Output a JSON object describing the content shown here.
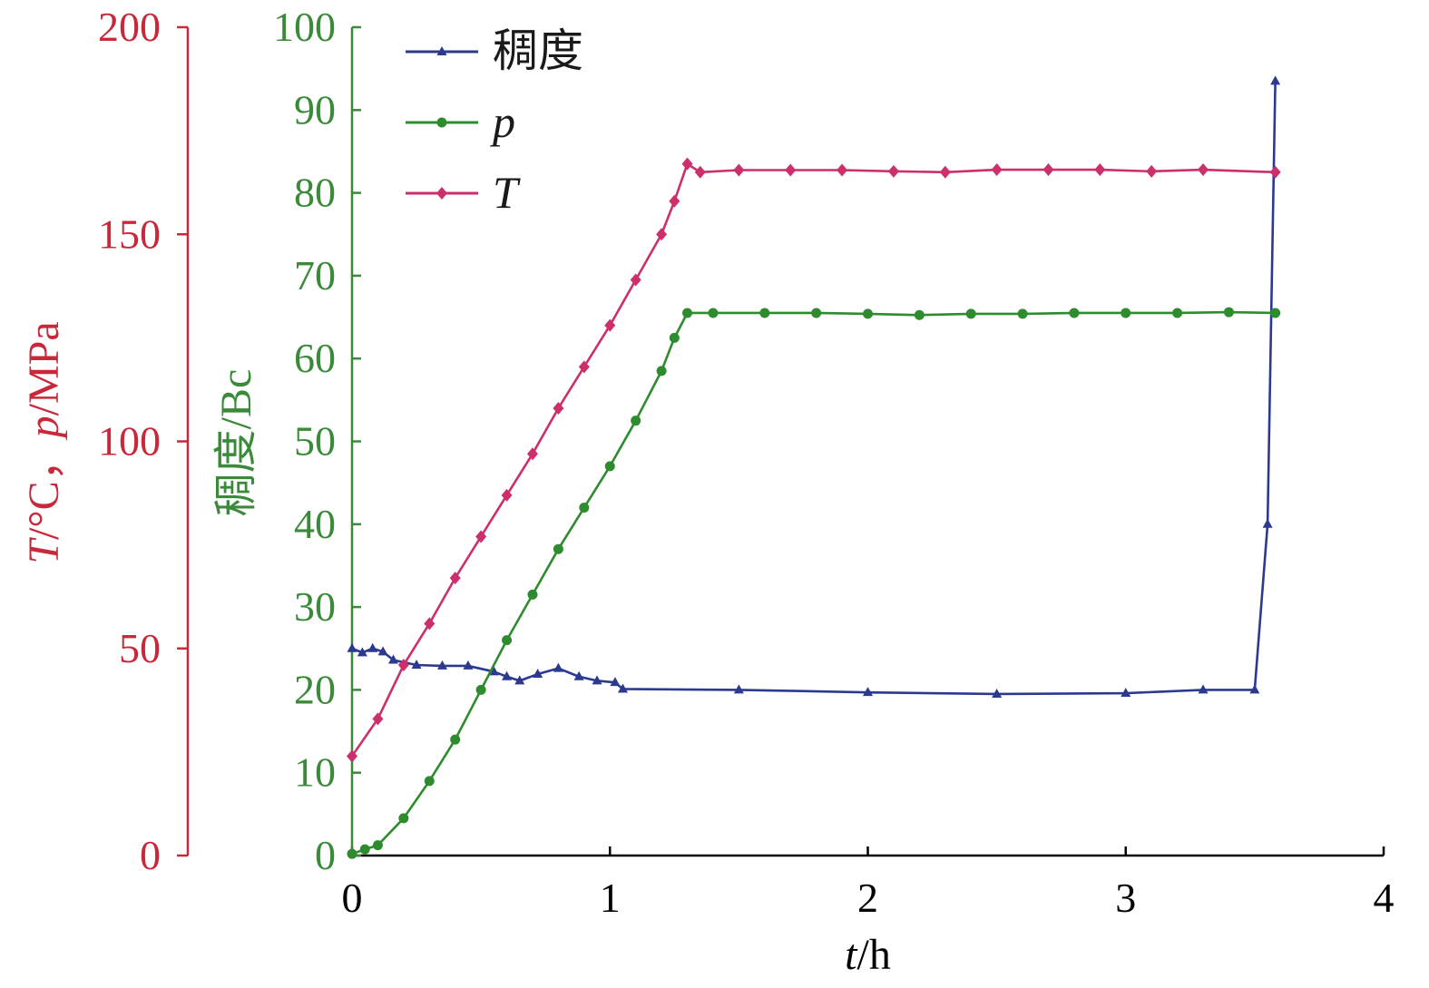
{
  "chart_data": {
    "type": "line",
    "x_axis": {
      "label_italic": "t",
      "label_rest": "/h",
      "range": [
        0,
        4
      ],
      "ticks": [
        0,
        1,
        2,
        3,
        4
      ],
      "color": "#000000"
    },
    "y_axis_outer": {
      "label_T": "T",
      "label_T_unit": "/°C，",
      "label_p": "p",
      "label_p_unit": "/MPa",
      "range": [
        0,
        200
      ],
      "ticks": [
        0,
        50,
        100,
        150,
        200
      ],
      "color": "#c8283a"
    },
    "y_axis_inner": {
      "label": "稠度/Bc",
      "range": [
        0,
        100
      ],
      "ticks": [
        0,
        10,
        20,
        30,
        40,
        50,
        60,
        70,
        80,
        90,
        100
      ],
      "color": "#3a8a3a"
    },
    "legend": {
      "position": "top-left"
    },
    "series": [
      {
        "name": "稠度",
        "italic": false,
        "color": "#2b3a8f",
        "marker": "triangle",
        "axis": "inner",
        "points": [
          [
            0,
            25
          ],
          [
            0.04,
            24.5
          ],
          [
            0.08,
            25
          ],
          [
            0.12,
            24.6
          ],
          [
            0.16,
            23.6
          ],
          [
            0.25,
            23
          ],
          [
            0.35,
            22.9
          ],
          [
            0.45,
            22.9
          ],
          [
            0.55,
            22.2
          ],
          [
            0.6,
            21.6
          ],
          [
            0.65,
            21.1
          ],
          [
            0.72,
            21.9
          ],
          [
            0.8,
            22.6
          ],
          [
            0.88,
            21.6
          ],
          [
            0.95,
            21.1
          ],
          [
            1.02,
            20.9
          ],
          [
            1.05,
            20.1
          ],
          [
            1.5,
            20
          ],
          [
            2.0,
            19.7
          ],
          [
            2.5,
            19.5
          ],
          [
            3.0,
            19.6
          ],
          [
            3.3,
            20
          ],
          [
            3.5,
            20
          ],
          [
            3.55,
            40
          ],
          [
            3.58,
            93.5
          ]
        ]
      },
      {
        "name": "p",
        "italic": true,
        "color": "#2e8b2e",
        "marker": "circle",
        "axis": "outer",
        "points": [
          [
            0,
            0.4
          ],
          [
            0.05,
            1.5
          ],
          [
            0.1,
            2.5
          ],
          [
            0.2,
            9
          ],
          [
            0.3,
            18
          ],
          [
            0.4,
            28
          ],
          [
            0.5,
            40
          ],
          [
            0.6,
            52
          ],
          [
            0.7,
            63
          ],
          [
            0.8,
            74
          ],
          [
            0.9,
            84
          ],
          [
            1.0,
            94
          ],
          [
            1.1,
            105
          ],
          [
            1.2,
            117
          ],
          [
            1.25,
            125
          ],
          [
            1.3,
            131
          ],
          [
            1.4,
            131
          ],
          [
            1.6,
            131
          ],
          [
            1.8,
            131
          ],
          [
            2.0,
            130.8
          ],
          [
            2.2,
            130.5
          ],
          [
            2.4,
            130.8
          ],
          [
            2.6,
            130.8
          ],
          [
            2.8,
            131
          ],
          [
            3.0,
            131
          ],
          [
            3.2,
            131
          ],
          [
            3.4,
            131.2
          ],
          [
            3.58,
            131
          ]
        ]
      },
      {
        "name": "T",
        "italic": true,
        "color": "#cc2f6b",
        "marker": "diamond",
        "axis": "outer",
        "points": [
          [
            0,
            24
          ],
          [
            0.1,
            33
          ],
          [
            0.2,
            46
          ],
          [
            0.3,
            56
          ],
          [
            0.4,
            67
          ],
          [
            0.5,
            77
          ],
          [
            0.6,
            87
          ],
          [
            0.7,
            97
          ],
          [
            0.8,
            108
          ],
          [
            0.9,
            118
          ],
          [
            1.0,
            128
          ],
          [
            1.1,
            139
          ],
          [
            1.2,
            150
          ],
          [
            1.25,
            158
          ],
          [
            1.3,
            167
          ],
          [
            1.35,
            165
          ],
          [
            1.5,
            165.5
          ],
          [
            1.7,
            165.5
          ],
          [
            1.9,
            165.5
          ],
          [
            2.1,
            165.2
          ],
          [
            2.3,
            165
          ],
          [
            2.5,
            165.6
          ],
          [
            2.7,
            165.6
          ],
          [
            2.9,
            165.6
          ],
          [
            3.1,
            165.2
          ],
          [
            3.3,
            165.6
          ],
          [
            3.58,
            165
          ]
        ]
      }
    ]
  }
}
